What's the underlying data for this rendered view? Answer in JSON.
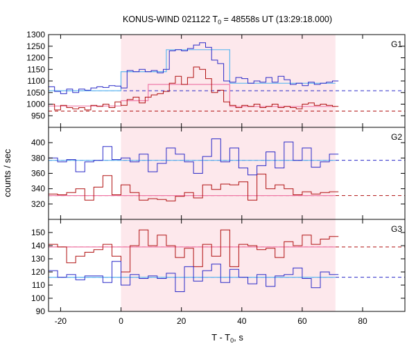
{
  "chart_data": {
    "type": "line",
    "title_prefix": "KONUS-WIND 021122 T",
    "title_sub": "0",
    "title_suffix": " = 48558s UT (13:29:18.000)",
    "xlabel_prefix": "T - T",
    "xlabel_sub": "0",
    "xlabel_suffix": ", s",
    "ylabel": "counts / sec",
    "xlim": [
      -24,
      94
    ],
    "xticks": [
      -20,
      0,
      20,
      40,
      60,
      80
    ],
    "highlight_interval": [
      0,
      71
    ],
    "colors": {
      "blue": "#2a2ac8",
      "red": "#b01010",
      "light_blue": "#5fb8f0",
      "pink": "#f07aa8",
      "highlight": "#fde8ec"
    },
    "panels": [
      {
        "label": "G1",
        "ylim": [
          900,
          1300
        ],
        "yticks": [
          900,
          950,
          1000,
          1050,
          1100,
          1150,
          1200,
          1250,
          1300
        ],
        "blue_background": 1058,
        "red_background": 970,
        "blue_series": {
          "edges": [
            -24,
            -22,
            -20,
            -18,
            -16,
            -14,
            -12,
            -10,
            -8,
            -6,
            -4,
            -2,
            0,
            2,
            4,
            6,
            8,
            10,
            12,
            14,
            16,
            18,
            20,
            22,
            24,
            26,
            28,
            30,
            32,
            34,
            36,
            38,
            40,
            42,
            44,
            46,
            48,
            50,
            52,
            54,
            56,
            58,
            60,
            62,
            64,
            66,
            68,
            70,
            72
          ],
          "values": [
            1075,
            1055,
            1045,
            1065,
            1050,
            1065,
            1060,
            1070,
            1075,
            1072,
            1080,
            1078,
            1070,
            1145,
            1140,
            1150,
            1140,
            1145,
            1135,
            1150,
            1230,
            1235,
            1230,
            1240,
            1255,
            1265,
            1245,
            1190,
            1175,
            1100,
            1095,
            1115,
            1110,
            1090,
            1100,
            1095,
            1115,
            1095,
            1120,
            1105,
            1085,
            1090,
            1080,
            1095,
            1085,
            1090,
            1095,
            1100
          ]
        },
        "red_series": {
          "edges": [
            -24,
            -22,
            -20,
            -18,
            -16,
            -14,
            -12,
            -10,
            -8,
            -6,
            -4,
            -2,
            0,
            2,
            4,
            6,
            8,
            10,
            12,
            14,
            16,
            18,
            20,
            22,
            24,
            26,
            28,
            30,
            32,
            34,
            36,
            38,
            40,
            42,
            44,
            46,
            48,
            50,
            52,
            54,
            56,
            58,
            60,
            62,
            64,
            66,
            68,
            70,
            72
          ],
          "values": [
            1000,
            975,
            995,
            985,
            980,
            985,
            975,
            995,
            990,
            1000,
            985,
            1010,
            995,
            1020,
            1030,
            1005,
            1030,
            1040,
            1045,
            1055,
            1090,
            1120,
            1085,
            1115,
            1160,
            1150,
            1110,
            1050,
            1060,
            1010,
            995,
            985,
            995,
            990,
            1000,
            985,
            990,
            1000,
            985,
            990,
            985,
            980,
            1000,
            1005,
            995,
            1000,
            995,
            990
          ]
        },
        "light_blue_fit": [
          [
            -24,
            1058
          ],
          [
            0,
            1058
          ],
          [
            0,
            1140
          ],
          [
            15,
            1140
          ],
          [
            15,
            1235
          ],
          [
            36,
            1235
          ],
          [
            36,
            1090
          ],
          [
            71,
            1090
          ]
        ],
        "pink_fit": [
          [
            -24,
            992
          ],
          [
            0,
            992
          ],
          [
            0,
            1015
          ],
          [
            9,
            1015
          ],
          [
            9,
            1085
          ],
          [
            36,
            1085
          ],
          [
            36,
            990
          ],
          [
            71,
            990
          ]
        ]
      },
      {
        "label": "G2",
        "ylim": [
          300,
          420
        ],
        "yticks": [
          300,
          320,
          340,
          360,
          380,
          400
        ],
        "blue_background": 377,
        "red_background": 331,
        "blue_series": {
          "edges": [
            -24,
            -21,
            -18,
            -15,
            -12,
            -9,
            -6,
            -3,
            0,
            3,
            6,
            9,
            12,
            15,
            18,
            21,
            24,
            27,
            30,
            33,
            36,
            39,
            42,
            45,
            48,
            51,
            54,
            57,
            60,
            63,
            66,
            69,
            72
          ],
          "values": [
            380,
            375,
            378,
            362,
            375,
            377,
            395,
            378,
            380,
            375,
            385,
            362,
            373,
            393,
            385,
            375,
            360,
            382,
            405,
            375,
            393,
            367,
            358,
            370,
            388,
            367,
            401,
            377,
            393,
            368,
            375,
            385
          ]
        },
        "red_series": {
          "edges": [
            -24,
            -21,
            -18,
            -15,
            -12,
            -9,
            -6,
            -3,
            0,
            3,
            6,
            9,
            12,
            15,
            18,
            21,
            24,
            27,
            30,
            33,
            36,
            39,
            42,
            45,
            48,
            51,
            54,
            57,
            60,
            63,
            66,
            69,
            72
          ],
          "values": [
            333,
            332,
            335,
            340,
            325,
            342,
            357,
            332,
            345,
            335,
            325,
            327,
            326,
            324,
            330,
            335,
            328,
            345,
            339,
            346,
            345,
            349,
            325,
            359,
            340,
            345,
            340,
            332,
            336,
            333,
            335,
            336
          ]
        },
        "light_blue_fit": [
          [
            -24,
            377
          ],
          [
            71,
            377
          ]
        ],
        "pink_fit": [
          [
            -24,
            331
          ],
          [
            71,
            331
          ]
        ]
      },
      {
        "label": "G3",
        "ylim": [
          90,
          160
        ],
        "yticks": [
          90,
          100,
          110,
          120,
          130,
          140,
          150
        ],
        "blue_background": 116,
        "red_background": 139,
        "blue_series": {
          "edges": [
            -24,
            -21,
            -18,
            -15,
            -12,
            -9,
            -6,
            -3,
            0,
            3,
            6,
            9,
            12,
            15,
            18,
            21,
            24,
            27,
            30,
            33,
            36,
            39,
            42,
            45,
            48,
            51,
            54,
            57,
            60,
            63,
            66,
            69,
            72
          ],
          "values": [
            121,
            116,
            118,
            114,
            117,
            117,
            112,
            128,
            110,
            118,
            115,
            117,
            115,
            119,
            105,
            124,
            113,
            121,
            126,
            112,
            122,
            116,
            111,
            118,
            109,
            117,
            118,
            123,
            115,
            108,
            120,
            118
          ]
        },
        "red_series": {
          "edges": [
            -24,
            -21,
            -18,
            -15,
            -12,
            -9,
            -6,
            -3,
            0,
            3,
            6,
            9,
            12,
            15,
            18,
            21,
            24,
            27,
            30,
            33,
            36,
            39,
            42,
            45,
            48,
            51,
            54,
            57,
            60,
            63,
            66,
            69,
            72
          ],
          "values": [
            141,
            139,
            127,
            132,
            135,
            137,
            141,
            132,
            120,
            140,
            152,
            140,
            148,
            140,
            131,
            138,
            124,
            141,
            132,
            152,
            124,
            141,
            140,
            137,
            138,
            131,
            143,
            140,
            148,
            141,
            145,
            147
          ]
        },
        "light_blue_fit": [
          [
            -24,
            116
          ],
          [
            71,
            116
          ]
        ],
        "pink_fit": [
          [
            -24,
            139
          ],
          [
            71,
            139
          ]
        ]
      }
    ]
  }
}
